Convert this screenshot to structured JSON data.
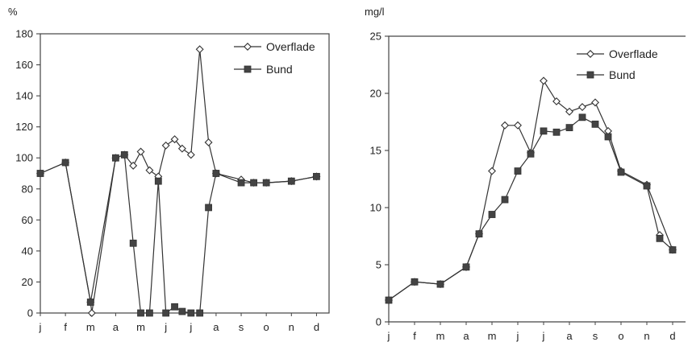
{
  "chart_data": [
    {
      "type": "line",
      "unit_label": "%",
      "ylim": [
        0,
        180
      ],
      "yticks": [
        0,
        20,
        40,
        60,
        80,
        100,
        120,
        140,
        160,
        180
      ],
      "xlim": [
        0,
        11.5
      ],
      "month_labels": [
        "j",
        "f",
        "m",
        "a",
        "m",
        "j",
        "j",
        "a",
        "s",
        "o",
        "n",
        "d"
      ],
      "frame": "box",
      "legend_position": "top-right",
      "series": [
        {
          "name": "Overflade",
          "marker": "diamond-open",
          "x": [
            0,
            1,
            2,
            2.05,
            3,
            3.35,
            3.7,
            4,
            4.35,
            4.7,
            5,
            5.35,
            5.65,
            6,
            6.35,
            6.7,
            7,
            8,
            8.5,
            9,
            10,
            11
          ],
          "y": [
            90,
            97,
            7,
            0,
            100,
            102,
            95,
            104,
            92,
            88,
            108,
            112,
            106,
            102,
            170,
            110,
            90,
            86,
            84,
            84,
            85,
            88
          ]
        },
        {
          "name": "Bund",
          "marker": "square-filled",
          "x": [
            0,
            1,
            2,
            3,
            3.35,
            3.7,
            4,
            4.35,
            4.7,
            5,
            5.35,
            5.65,
            6,
            6.35,
            6.7,
            7,
            8,
            8.5,
            9,
            10,
            11
          ],
          "y": [
            90,
            97,
            7,
            100,
            102,
            45,
            0,
            0,
            85,
            0,
            4,
            1,
            0,
            0,
            68,
            90,
            84,
            84,
            84,
            85,
            88
          ]
        }
      ]
    },
    {
      "type": "line",
      "unit_label": "mg/l",
      "ylim": [
        0,
        25
      ],
      "yticks": [
        0,
        5,
        10,
        15,
        20,
        25
      ],
      "xlim": [
        0,
        11.5
      ],
      "month_labels": [
        "j",
        "f",
        "m",
        "a",
        "m",
        "j",
        "j",
        "a",
        "s",
        "o",
        "n",
        "d"
      ],
      "frame": "top-left-bottom",
      "legend_position": "top-right",
      "series": [
        {
          "name": "Overflade",
          "marker": "diamond-open",
          "x": [
            0,
            1,
            2,
            3,
            3.5,
            4,
            4.5,
            5,
            5.5,
            6,
            6.5,
            7,
            7.5,
            8,
            8.5,
            9,
            10,
            11
          ],
          "y": [
            1.9,
            3.5,
            3.3,
            4.8,
            7.7,
            13.2,
            17.2,
            17.2,
            14.8,
            21.1,
            19.3,
            18.4,
            18.8,
            19.2,
            16.7,
            13.2,
            12.0,
            6.3
          ],
          "extra_points": [
            [
              10.5,
              7.6
            ]
          ]
        },
        {
          "name": "Bund",
          "marker": "square-filled",
          "x": [
            0,
            1,
            2,
            3,
            3.5,
            4,
            4.5,
            5,
            5.5,
            6,
            6.5,
            7,
            7.5,
            8,
            8.5,
            9,
            10,
            10.5,
            11
          ],
          "y": [
            1.9,
            3.5,
            3.3,
            4.8,
            7.7,
            9.4,
            10.7,
            13.2,
            14.7,
            16.7,
            16.6,
            17.0,
            17.9,
            17.3,
            16.2,
            13.1,
            11.9,
            7.3,
            6.3
          ]
        }
      ]
    }
  ]
}
